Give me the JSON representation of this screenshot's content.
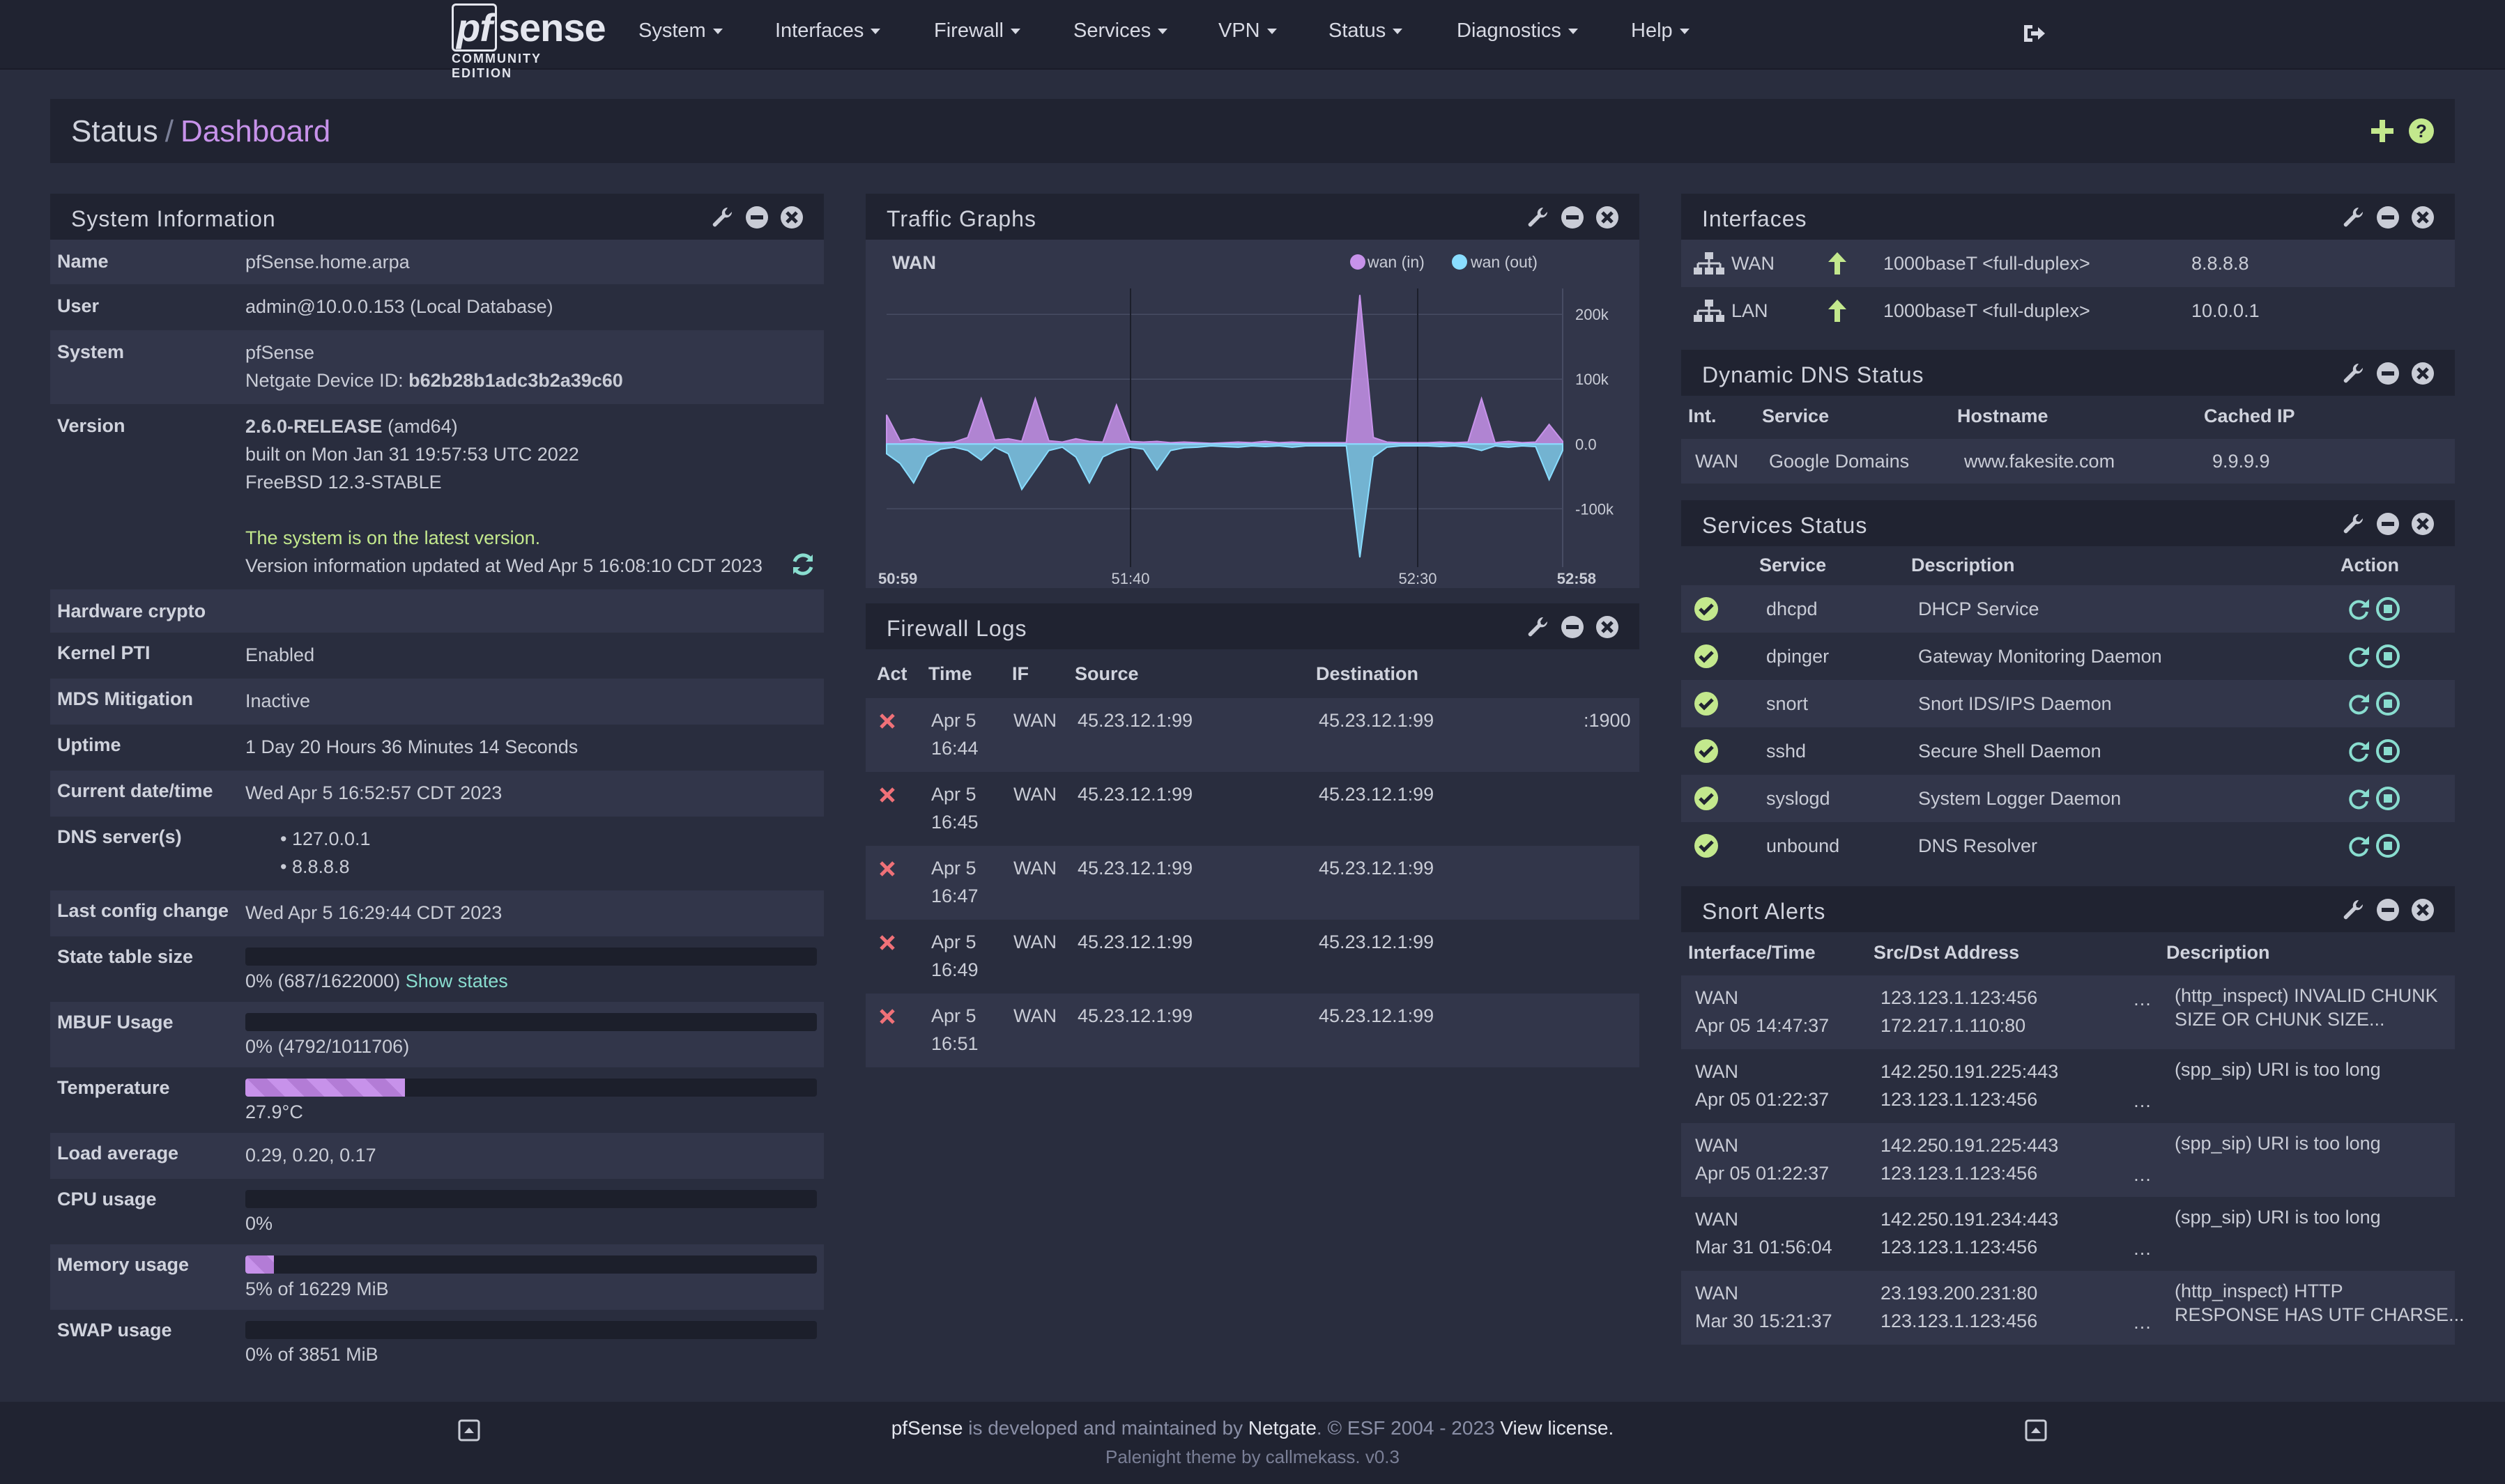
{
  "nav": {
    "logo": "sense",
    "logo_prefix": "pf",
    "logo_sub": "COMMUNITY EDITION",
    "items": [
      "System",
      "Interfaces",
      "Firewall",
      "Services",
      "VPN",
      "Status",
      "Diagnostics",
      "Help"
    ]
  },
  "breadcrumb": {
    "part1": "Status",
    "sep": "/",
    "part2": "Dashboard"
  },
  "sysinfo": {
    "title": "System Information",
    "name_label": "Name",
    "name": "pfSense.home.arpa",
    "user_label": "User",
    "user": "admin@10.0.0.153 (Local Database)",
    "system_label": "System",
    "system1": "pfSense",
    "system2_pre": "Netgate Device ID: ",
    "system2_id": "b62b28b1adc3b2a39c60",
    "version_label": "Version",
    "version_rel": "2.6.0-RELEASE",
    "version_arch": " (amd64)",
    "version_built": "built on Mon Jan 31 19:57:53 UTC 2022",
    "version_os": "FreeBSD 12.3-STABLE",
    "version_latest": "The system is on the latest version.",
    "version_updated": "Version information updated at Wed Apr 5 16:08:10 CDT 2023",
    "hwcrypto_label": "Hardware crypto",
    "pti_label": "Kernel PTI",
    "pti": "Enabled",
    "mds_label": "MDS Mitigation",
    "mds": "Inactive",
    "uptime_label": "Uptime",
    "uptime": "1 Day 20 Hours 36 Minutes 14 Seconds",
    "date_label": "Current date/time",
    "date": "Wed Apr 5 16:52:57 CDT 2023",
    "dns_label": "DNS server(s)",
    "dns": [
      "127.0.0.1",
      "8.8.8.8"
    ],
    "config_label": "Last config change",
    "config": "Wed Apr 5 16:29:44 CDT 2023",
    "state_label": "State table size",
    "state": "0% (687/1622000)",
    "state_link": "Show states",
    "state_pct": 0,
    "mbuf_label": "MBUF Usage",
    "mbuf": "0% (4792/1011706)",
    "mbuf_pct": 0,
    "temp_label": "Temperature",
    "temp": "27.9°C",
    "temp_pct": 27.9,
    "load_label": "Load average",
    "load": "0.29, 0.20, 0.17",
    "cpu_label": "CPU usage",
    "cpu": "0%",
    "cpu_pct": 0,
    "mem_label": "Memory usage",
    "mem": "5% of 16229 MiB",
    "mem_pct": 5,
    "swap_label": "SWAP usage",
    "swap": "0% of 3851 MiB",
    "swap_pct": 0
  },
  "traffic": {
    "title": "Traffic Graphs",
    "chart_data": {
      "type": "area",
      "title": "WAN",
      "legend": [
        "wan (in)",
        "wan (out)"
      ],
      "legend_placement": "top-right",
      "x_ticks": [
        "50:59",
        "51:40",
        "52:30",
        "52:58"
      ],
      "y_ticks": [
        "200k",
        "100k",
        "0.0",
        "-100k"
      ],
      "ylim": [
        -190000,
        240000
      ],
      "colors": {
        "in": "#c792ea",
        "out": "#89ddff"
      },
      "series": [
        {
          "name": "wan (in)",
          "values": [
            45000,
            5000,
            8000,
            4000,
            2000,
            3000,
            10000,
            70000,
            6000,
            8000,
            4000,
            70000,
            5000,
            3000,
            8000,
            4000,
            3000,
            60000,
            4000,
            3000,
            4000,
            2000,
            3000,
            2000,
            1000,
            2000,
            3000,
            2000,
            4000,
            2000,
            3000,
            2000,
            2000,
            2000,
            2000,
            230000,
            10000,
            3000,
            2000,
            2000,
            2000,
            3000,
            2000,
            3000,
            70000,
            2000,
            4000,
            2000,
            3000,
            30000,
            4000
          ]
        },
        {
          "name": "wan (out)",
          "values": [
            -15000,
            -30000,
            -60000,
            -20000,
            -8000,
            -5000,
            -10000,
            -25000,
            -5000,
            -15000,
            -70000,
            -40000,
            -10000,
            -5000,
            -20000,
            -60000,
            -20000,
            -10000,
            -5000,
            -8000,
            -40000,
            -10000,
            -6000,
            -5000,
            -3000,
            -4000,
            -5000,
            -3000,
            -4000,
            -3000,
            -5000,
            -3000,
            -3000,
            -3000,
            -3000,
            -175000,
            -20000,
            -5000,
            -3000,
            -3000,
            -3000,
            -4000,
            -3000,
            -5000,
            -10000,
            -3000,
            -5000,
            -3000,
            -4000,
            -55000,
            -10000
          ]
        }
      ]
    }
  },
  "fwlogs": {
    "title": "Firewall Logs",
    "headers": [
      "Act",
      "Time",
      "IF",
      "Source",
      "Destination"
    ],
    "rows": [
      {
        "date": "Apr 5",
        "time": "16:44",
        "if": "WAN",
        "src": "45.23.12.1:99",
        "dst": "45.23.12.1:99",
        "port": ":1900"
      },
      {
        "date": "Apr 5",
        "time": "16:45",
        "if": "WAN",
        "src": "45.23.12.1:99",
        "dst": "45.23.12.1:99",
        "port": ""
      },
      {
        "date": "Apr 5",
        "time": "16:47",
        "if": "WAN",
        "src": "45.23.12.1:99",
        "dst": "45.23.12.1:99",
        "port": ""
      },
      {
        "date": "Apr 5",
        "time": "16:49",
        "if": "WAN",
        "src": "45.23.12.1:99",
        "dst": "45.23.12.1:99",
        "port": ""
      },
      {
        "date": "Apr 5",
        "time": "16:51",
        "if": "WAN",
        "src": "45.23.12.1:99",
        "dst": "45.23.12.1:99",
        "port": ""
      }
    ]
  },
  "interfaces": {
    "title": "Interfaces",
    "rows": [
      {
        "name": "WAN",
        "media": "1000baseT <full-duplex>",
        "ip": "8.8.8.8"
      },
      {
        "name": "LAN",
        "media": "1000baseT <full-duplex>",
        "ip": "10.0.0.1"
      }
    ]
  },
  "ddns": {
    "title": "Dynamic DNS Status",
    "headers": [
      "Int.",
      "Service",
      "Hostname",
      "Cached IP"
    ],
    "rows": [
      {
        "int": "WAN",
        "service": "Google Domains",
        "host": "www.fakesite.com",
        "ip": "9.9.9.9"
      }
    ]
  },
  "services": {
    "title": "Services Status",
    "headers": [
      "Service",
      "Description",
      "Action"
    ],
    "rows": [
      {
        "name": "dhcpd",
        "desc": "DHCP Service"
      },
      {
        "name": "dpinger",
        "desc": "Gateway Monitoring Daemon"
      },
      {
        "name": "snort",
        "desc": "Snort IDS/IPS Daemon"
      },
      {
        "name": "sshd",
        "desc": "Secure Shell Daemon"
      },
      {
        "name": "syslogd",
        "desc": "System Logger Daemon"
      },
      {
        "name": "unbound",
        "desc": "DNS Resolver"
      }
    ]
  },
  "snort": {
    "title": "Snort Alerts",
    "headers": [
      "Interface/Time",
      "Src/Dst Address",
      "Description"
    ],
    "rows": [
      {
        "if": "WAN",
        "time": "Apr 05 14:47:37",
        "src": "123.123.1.123:456",
        "dst": "172.217.1.110:80",
        "d1": "(http_inspect) INVALID CHUNK",
        "d2": "SIZE OR CHUNK SIZE..."
      },
      {
        "if": "WAN",
        "time": "Apr 05 01:22:37",
        "src": "142.250.191.225:443",
        "dst": "123.123.1.123:456",
        "d1": "(spp_sip) URI is too long",
        "d2": ""
      },
      {
        "if": "WAN",
        "time": "Apr 05 01:22:37",
        "src": "142.250.191.225:443",
        "dst": "123.123.1.123:456",
        "d1": "(spp_sip) URI is too long",
        "d2": ""
      },
      {
        "if": "WAN",
        "time": "Mar 31 01:56:04",
        "src": "142.250.191.234:443",
        "dst": "123.123.1.123:456",
        "d1": "(spp_sip) URI is too long",
        "d2": ""
      },
      {
        "if": "WAN",
        "time": "Mar 30 15:21:37",
        "src": "23.193.200.231:80",
        "dst": "123.123.1.123:456",
        "d1": "(http_inspect) HTTP",
        "d2": "RESPONSE HAS UTF CHARSE..."
      }
    ]
  },
  "footer": {
    "brand": "pfSense",
    "t1": " is developed and maintained by ",
    "company": "Netgate",
    "t2": ". © ESF 2004 - 2023 ",
    "license": "View license.",
    "theme": "Palenight theme by callmekass. v0.3"
  }
}
